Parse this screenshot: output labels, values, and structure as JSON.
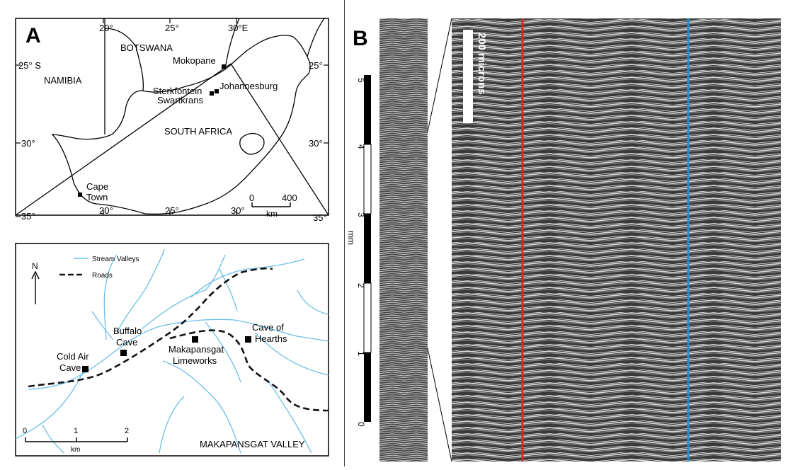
{
  "panel_a": {
    "label": "A",
    "map": {
      "lon_ticks_top": [
        "20°",
        "25°",
        "30°E"
      ],
      "lon_ticks_bottom": [
        "20°",
        "25°",
        "30°",
        "35°"
      ],
      "lat_ticks_left": [
        "25° S",
        "30°",
        "35°"
      ],
      "lat_ticks_right": [
        "25°",
        "30°"
      ],
      "countries": [
        "BOTSWANA",
        "NAMIBIA",
        "SOUTH AFRICA"
      ],
      "places": [
        "Mokopane",
        "Johannesburg",
        "Sterkfontein",
        "Swartkrans",
        "Cape",
        "Town"
      ],
      "scalebar": {
        "zero": "0",
        "max": "400",
        "unit": "km"
      }
    },
    "inset": {
      "north_label": "N",
      "legend": {
        "streams": "Stream Valleys",
        "roads": "Roads"
      },
      "sites": {
        "buffalo": [
          "Buffalo",
          "Cave"
        ],
        "cold_air": [
          "Cold Air",
          "Cave"
        ],
        "makapansgat": [
          "Makapansgat",
          "Limeworks"
        ],
        "hearths": [
          "Cave of",
          "Hearths"
        ]
      },
      "scalebar": {
        "ticks": [
          "0",
          "1",
          "2"
        ],
        "unit": "km"
      },
      "valley_label": "MAKAPANSGAT VALLEY"
    },
    "colors": {
      "stream": "#6bbfe6",
      "road": "#111111"
    }
  },
  "panel_b": {
    "label": "B",
    "axis_ticks": [
      "5",
      "4",
      "3",
      "2",
      "1",
      "0"
    ],
    "axis_unit": "mm",
    "scale_label": "200 microns",
    "line_colors": {
      "red": "#e0241e",
      "blue": "#1f8fd1"
    }
  }
}
